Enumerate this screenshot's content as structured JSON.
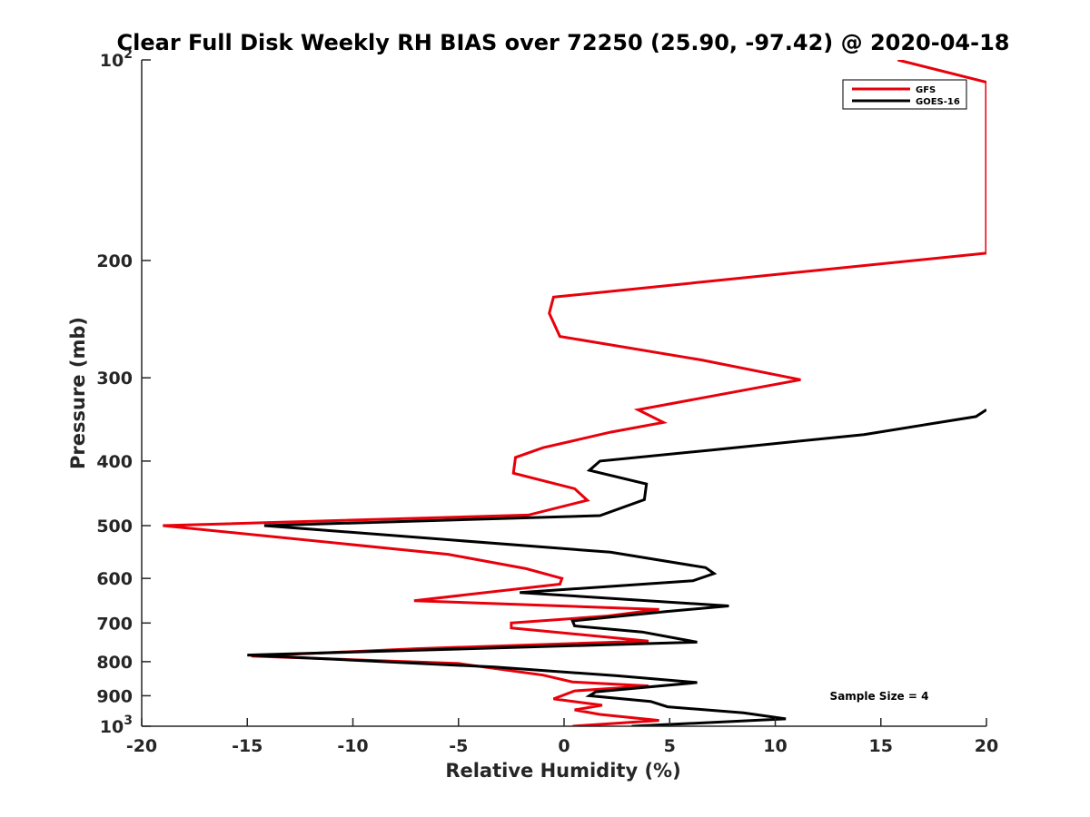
{
  "chart_data": {
    "type": "line",
    "title": "Clear Full Disk Weekly RH BIAS over 72250 (25.90, -97.42) @ 2020-04-18",
    "xlabel": "Relative Humidity (%)",
    "ylabel": "Pressure (mb)",
    "xlim": [
      -20,
      20
    ],
    "ylim": [
      100,
      1000
    ],
    "y_scale": "log",
    "y_reversed": true,
    "x_ticks": [
      "-20",
      "-15",
      "-10",
      "-5",
      "0",
      "5",
      "10",
      "15",
      "20"
    ],
    "y_ticks": [
      {
        "value": 100,
        "base": "10",
        "exp": "2"
      },
      {
        "value": 200,
        "label": "200"
      },
      {
        "value": 300,
        "label": "300"
      },
      {
        "value": 400,
        "label": "400"
      },
      {
        "value": 500,
        "label": "500"
      },
      {
        "value": 600,
        "label": "600"
      },
      {
        "value": 700,
        "label": "700"
      },
      {
        "value": 800,
        "label": "800"
      },
      {
        "value": 900,
        "label": "900"
      },
      {
        "value": 1000,
        "base": "10",
        "exp": "3"
      }
    ],
    "grid": false,
    "legend_position": "top-right",
    "annotation": "Sample Size = 4",
    "series": [
      {
        "name": "GFS",
        "color": "#e8000b",
        "points": [
          [
            15.8,
            100
          ],
          [
            20.0,
            108
          ],
          [
            20.0,
            195
          ],
          [
            -0.5,
            227
          ],
          [
            -0.7,
            240
          ],
          [
            -0.2,
            260
          ],
          [
            6.5,
            282
          ],
          [
            11.2,
            302
          ],
          [
            3.5,
            335
          ],
          [
            4.7,
            350
          ],
          [
            2.2,
            362
          ],
          [
            -1.0,
            382
          ],
          [
            -2.3,
            395
          ],
          [
            -2.4,
            417
          ],
          [
            0.5,
            440
          ],
          [
            1.1,
            458
          ],
          [
            -1.7,
            482
          ],
          [
            -19.0,
            500
          ],
          [
            -5.5,
            552
          ],
          [
            -1.8,
            580
          ],
          [
            -0.1,
            600
          ],
          [
            -0.2,
            612
          ],
          [
            -7.1,
            648
          ],
          [
            4.5,
            668
          ],
          [
            2.1,
            683
          ],
          [
            -2.5,
            700
          ],
          [
            -2.5,
            712
          ],
          [
            4.0,
            745
          ],
          [
            -7.0,
            765
          ],
          [
            -14.8,
            785
          ],
          [
            -5.0,
            805
          ],
          [
            -1.0,
            838
          ],
          [
            0.4,
            858
          ],
          [
            4.0,
            870
          ],
          [
            0.5,
            885
          ],
          [
            -0.5,
            910
          ],
          [
            1.8,
            930
          ],
          [
            0.5,
            945
          ],
          [
            1.7,
            960
          ],
          [
            4.5,
            980
          ],
          [
            0.4,
            1000
          ]
        ]
      },
      {
        "name": "GOES-16",
        "color": "#000000",
        "points": [
          [
            20.0,
            335
          ],
          [
            19.5,
            343
          ],
          [
            14.2,
            365
          ],
          [
            7.0,
            385
          ],
          [
            1.7,
            400
          ],
          [
            1.2,
            413
          ],
          [
            3.9,
            433
          ],
          [
            3.8,
            457
          ],
          [
            1.7,
            483
          ],
          [
            -14.2,
            500
          ],
          [
            2.2,
            548
          ],
          [
            6.7,
            578
          ],
          [
            7.1,
            590
          ],
          [
            6.1,
            605
          ],
          [
            -2.1,
            630
          ],
          [
            7.8,
            660
          ],
          [
            4.8,
            673
          ],
          [
            0.4,
            695
          ],
          [
            0.5,
            707
          ],
          [
            3.7,
            722
          ],
          [
            6.3,
            748
          ],
          [
            -15.0,
            782
          ],
          [
            -3.3,
            815
          ],
          [
            2.5,
            840
          ],
          [
            6.3,
            860
          ],
          [
            1.5,
            888
          ],
          [
            1.2,
            900
          ],
          [
            4.1,
            918
          ],
          [
            4.9,
            935
          ],
          [
            8.5,
            955
          ],
          [
            10.5,
            975
          ],
          [
            3.2,
            1000
          ]
        ]
      }
    ]
  }
}
